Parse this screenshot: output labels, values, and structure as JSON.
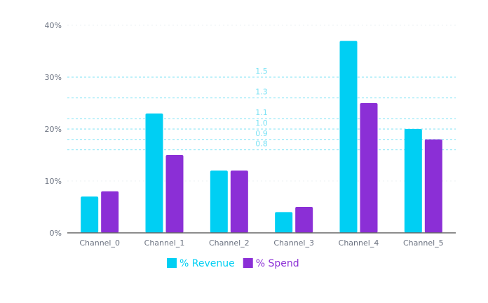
{
  "chart_data": {
    "type": "bar",
    "categories": [
      "Channel_0",
      "Channel_1",
      "Channel_2",
      "Channel_3",
      "Channel_4",
      "Channel_5"
    ],
    "series": [
      {
        "name": "% Revenue",
        "color": "#00cff3",
        "values": [
          7,
          23,
          12,
          4,
          37,
          20
        ]
      },
      {
        "name": "% Spend",
        "color": "#8b2fd6",
        "values": [
          8,
          15,
          12,
          5,
          25,
          18
        ]
      }
    ],
    "ylim": [
      0,
      40
    ],
    "yticks": [
      0,
      10,
      20,
      30,
      40
    ],
    "ytick_labels": [
      "0%",
      "10%",
      "20%",
      "30%",
      "40%"
    ],
    "grid": true,
    "legend": "bottom",
    "reference_lines": [
      {
        "label": "1.5",
        "y": 30
      },
      {
        "label": "1.3",
        "y": 26
      },
      {
        "label": "1.1",
        "y": 22
      },
      {
        "label": "1.0",
        "y": 20
      },
      {
        "label": "0.9",
        "y": 18
      },
      {
        "label": "0.8",
        "y": 16
      }
    ],
    "reference_color": "#7fe3f5"
  }
}
